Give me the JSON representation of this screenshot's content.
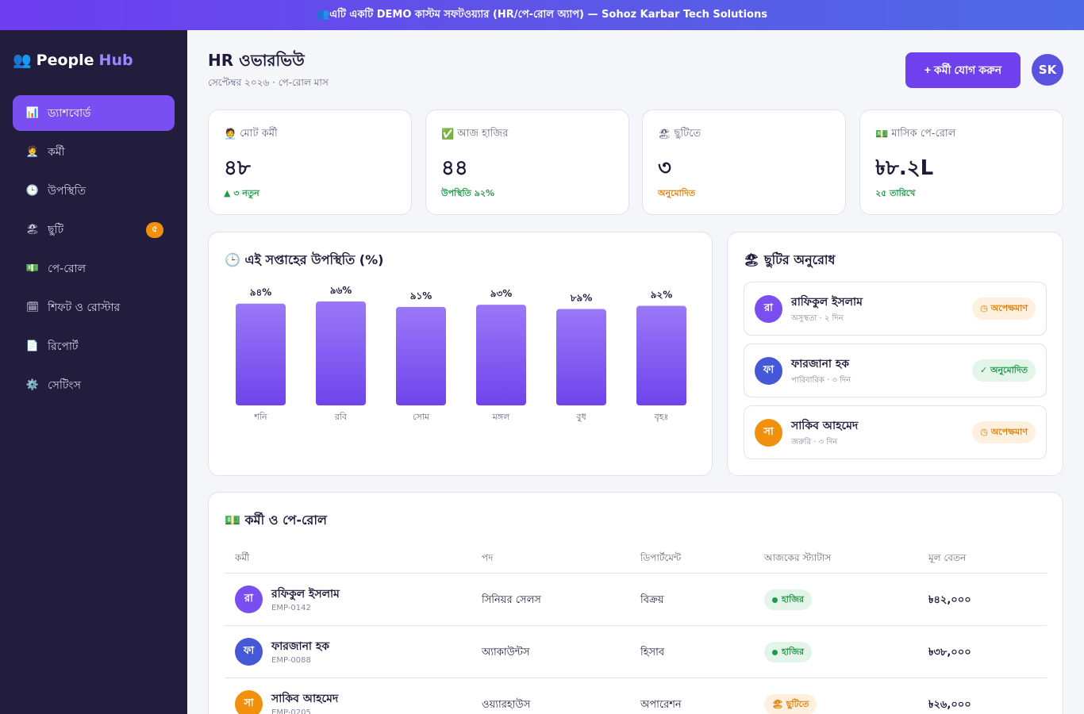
{
  "banner": {
    "text": "👥এটি একটি DEMO কাস্টম সফটওয়্যার (HR/পে-রোল অ্যাপ) — Sohoz Karbar Tech Solutions"
  },
  "brand": {
    "icon": "👥",
    "name": "People",
    "accent": "Hub"
  },
  "sidebar": {
    "items": [
      {
        "icon": "📊",
        "icon_name": "chart-icon",
        "label": "ড্যাশবোর্ড",
        "active": true
      },
      {
        "icon": "🧑‍💼",
        "icon_name": "employee-icon",
        "label": "কর্মী"
      },
      {
        "icon": "🕒",
        "icon_name": "clock-icon",
        "label": "উপস্থিতি"
      },
      {
        "icon": "🏖",
        "icon_name": "beach-icon",
        "label": "ছুটি",
        "badge": "৫"
      },
      {
        "icon": "💵",
        "icon_name": "money-icon",
        "label": "পে-রোল"
      },
      {
        "icon": "🗓",
        "icon_name": "calendar-icon",
        "label": "শিফট ও রোস্টার"
      },
      {
        "icon": "📄",
        "icon_name": "document-icon",
        "label": "রিপোর্ট"
      },
      {
        "icon": "⚙️",
        "icon_name": "gear-icon",
        "label": "সেটিংস"
      }
    ]
  },
  "header": {
    "title": "HR ওভারভিউ",
    "subtitle": "সেপ্টেম্বর ২০২৬ · পে-রোল মাস",
    "add_button": "+ কর্মী যোগ করুন",
    "user_initials": "SK"
  },
  "stats": [
    {
      "icon": "🧑‍💼",
      "label": "মোট কর্মী",
      "value": "৪৮",
      "note": "▲ ৩ নতুন",
      "note_color": "#1f9a48"
    },
    {
      "icon": "✅",
      "label": "আজ হাজির",
      "value": "৪৪",
      "note": "উপস্থিতি ৯২%",
      "note_color": "#1f9a48"
    },
    {
      "icon": "🏖",
      "label": "ছুটিতে",
      "value": "৩",
      "note": "অনুমোদিত",
      "note_color": "#e0820c"
    },
    {
      "icon": "💵",
      "label": "মাসিক পে-রোল",
      "value": "৳৮.২L",
      "note": "২৫ তারিখে",
      "note_color": "#1f9a48"
    }
  ],
  "attendance": {
    "title": "🕒 এই সপ্তাহের উপস্থিতি (%)"
  },
  "chart_data": {
    "type": "bar",
    "categories": [
      "শনি",
      "রবি",
      "সোম",
      "মঙ্গল",
      "বুধ",
      "বৃহঃ"
    ],
    "values": [
      94,
      96,
      91,
      93,
      89,
      92
    ],
    "value_labels": [
      "৯৪%",
      "৯৬%",
      "৯১%",
      "৯৩%",
      "৮৯%",
      "৯২%"
    ],
    "title": "🕒 এই সপ্তাহের উপস্থিতি (%)",
    "colors": {
      "top": "#9a78f7",
      "bottom": "#6f44ec"
    }
  },
  "leave": {
    "title": "🏖 ছুটির অনুরোধ",
    "items": [
      {
        "initial": "রা",
        "avatar_color": "#7a4ff2",
        "name": "রাফিকুল ইসলাম",
        "meta": "অসুস্থতা · ২ দিন",
        "status": "◷ অপেক্ষমাণ",
        "kind": "pending"
      },
      {
        "initial": "ফা",
        "avatar_color": "#4558d8",
        "name": "ফারজানা হক",
        "meta": "পারিবারিক · ৩ দিন",
        "status": "✓ অনুমোদিত",
        "kind": "ok"
      },
      {
        "initial": "সা",
        "avatar_color": "#f0900c",
        "name": "সাকিব আহমেদ",
        "meta": "জরুরি · ৩ দিন",
        "status": "◷ অপেক্ষমাণ",
        "kind": "pending"
      }
    ]
  },
  "payroll": {
    "title": "💵 কর্মী ও পে-রোল",
    "columns": [
      "কর্মী",
      "পদ",
      "ডিপার্টমেন্ট",
      "আজকের স্ট্যাটাস",
      "মূল বেতন"
    ],
    "rows": [
      {
        "initial": "রা",
        "avatar_color": "#7a4ff2",
        "name": "রফিকুল ইসলাম",
        "id": "EMP-0142",
        "role": "সিনিয়র সেলস",
        "dept": "বিক্রয়",
        "status": "হাজির",
        "kind": "present",
        "salary": "৳৪২,০০০"
      },
      {
        "initial": "ফা",
        "avatar_color": "#4558d8",
        "name": "ফারজানা হক",
        "id": "EMP-0088",
        "role": "অ্যাকাউন্টস",
        "dept": "হিসাব",
        "status": "হাজির",
        "kind": "present",
        "salary": "৳৩৮,০০০"
      },
      {
        "initial": "সা",
        "avatar_color": "#f0900c",
        "name": "সাকিব আহমেদ",
        "id": "EMP-0205",
        "role": "ওয়্যারহাউস",
        "dept": "অপারেশন",
        "status": "🏖 ছুটিতে",
        "kind": "leave",
        "salary": "৳২৬,০০০"
      }
    ]
  }
}
